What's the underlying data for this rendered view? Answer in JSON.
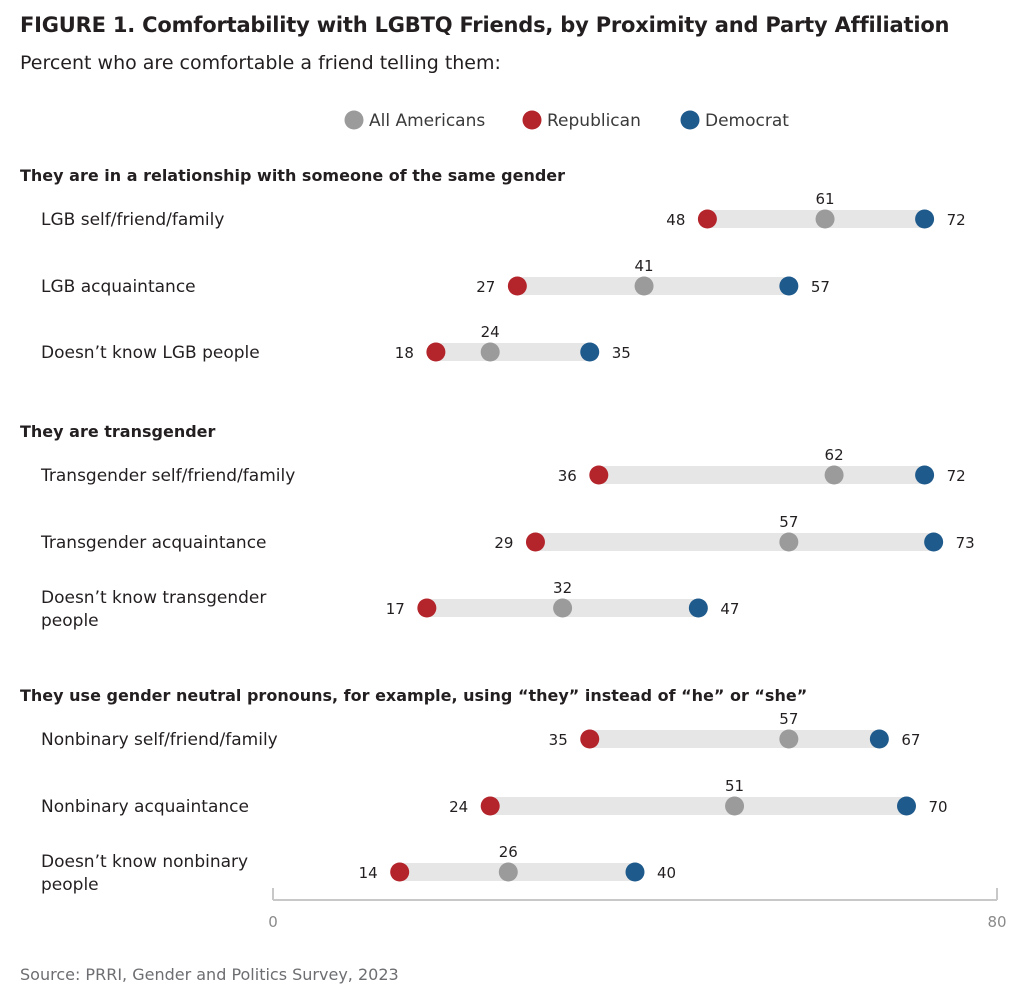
{
  "title": "FIGURE 1.  Comfortability with LGBTQ Friends, by Proximity and Party Affiliation",
  "subtitle": "Percent who are comfortable a friend telling them:",
  "source": "Source: PRRI, Gender and Politics Survey, 2023",
  "colors": {
    "all_americans": "#9b9b9b",
    "republican": "#b3242b",
    "democrat": "#1f5a8c",
    "bar": "#e6e6e6",
    "axis": "#c8c8c8"
  },
  "chart_data": {
    "type": "dumbbell",
    "xlim": [
      0,
      80
    ],
    "x_ticks": [
      "0",
      "80"
    ],
    "legend": [
      "All Americans",
      "Republican",
      "Democrat"
    ],
    "legend_position": "top-center",
    "groups": [
      {
        "title": "They are in a relationship with someone of the same gender",
        "rows": [
          {
            "label": [
              "LGB self/friend/family"
            ],
            "all": 61,
            "republican": 48,
            "democrat": 72
          },
          {
            "label": [
              "LGB acquaintance"
            ],
            "all": 41,
            "republican": 27,
            "democrat": 57
          },
          {
            "label": [
              "Doesn’t know LGB people"
            ],
            "all": 24,
            "republican": 18,
            "democrat": 35
          }
        ]
      },
      {
        "title": "They are transgender",
        "rows": [
          {
            "label": [
              "Transgender self/friend/family"
            ],
            "all": 62,
            "republican": 36,
            "democrat": 72
          },
          {
            "label": [
              "Transgender acquaintance"
            ],
            "all": 57,
            "republican": 29,
            "democrat": 73
          },
          {
            "label": [
              "Doesn’t know transgender",
              "people"
            ],
            "all": 32,
            "republican": 17,
            "democrat": 47
          }
        ]
      },
      {
        "title": "They use gender neutral pronouns, for example, using “they” instead of “he” or “she”",
        "rows": [
          {
            "label": [
              "Nonbinary self/friend/family"
            ],
            "all": 57,
            "republican": 35,
            "democrat": 67
          },
          {
            "label": [
              "Nonbinary acquaintance"
            ],
            "all": 51,
            "republican": 24,
            "democrat": 70
          },
          {
            "label": [
              "Doesn’t know nonbinary",
              "people"
            ],
            "all": 26,
            "republican": 14,
            "democrat": 40
          }
        ]
      }
    ]
  }
}
